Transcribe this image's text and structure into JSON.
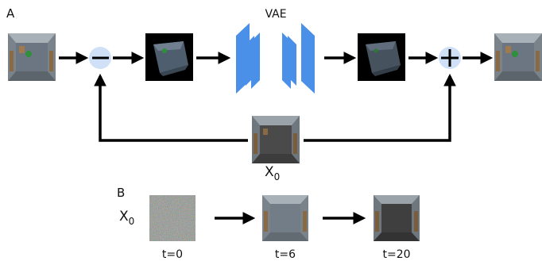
{
  "panels": {
    "a_label": "A",
    "b_label": "B"
  },
  "panel_a": {
    "vae_label": "VAE",
    "subtract_operator": "−",
    "add_operator": "+",
    "reference_label": "X",
    "reference_subscript": "0"
  },
  "panel_b": {
    "input_label": "X",
    "input_subscript": "0",
    "steps": [
      {
        "label": "t=0"
      },
      {
        "label": "t=6"
      },
      {
        "label": "t=20"
      }
    ]
  },
  "colors": {
    "vae_blue": "#4a90e8",
    "operator_fill": "#cfe0f7",
    "arrow": "#000000",
    "room_floor": "#6b7682",
    "room_wall": "#9aa3ac",
    "delta_bg": "#000000",
    "reconstruction_floor": "#4f5964",
    "reference_floor": "#4a4a4a",
    "final_floor": "#3f3f3f"
  }
}
